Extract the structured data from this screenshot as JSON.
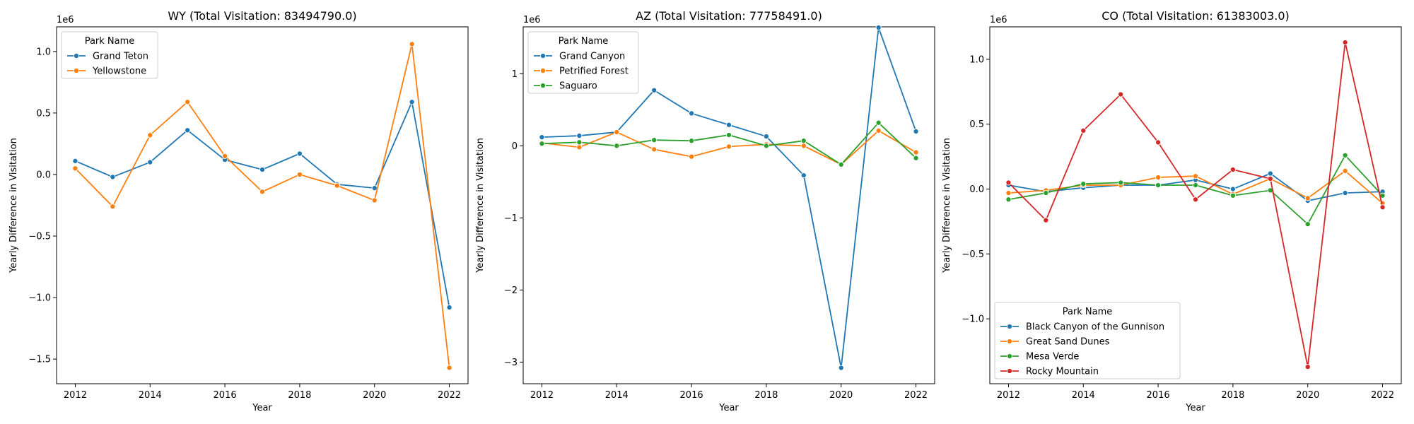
{
  "chart_data": [
    {
      "type": "line",
      "title": "WY (Total Visitation: 83494790.0)",
      "xlabel": "Year",
      "ylabel": "Yearly Difference in Visitation",
      "y_scale_label": "1e6",
      "xlim": [
        2011.5,
        2022.5
      ],
      "ylim": [
        -1.7,
        1.2
      ],
      "x_ticks": [
        2012,
        2014,
        2016,
        2018,
        2020,
        2022
      ],
      "y_ticks": [
        -1.5,
        -1.0,
        -0.5,
        0.0,
        0.5,
        1.0
      ],
      "y_tick_labels": [
        "−1.5",
        "−1.0",
        "−0.5",
        "0.0",
        "0.5",
        "1.0"
      ],
      "grid": false,
      "legend": {
        "title": "Park Name",
        "placement": "top-left"
      },
      "x": [
        2012,
        2013,
        2014,
        2015,
        2016,
        2017,
        2018,
        2019,
        2020,
        2021,
        2022
      ],
      "series": [
        {
          "name": "Grand Teton",
          "color": "#1f77b4",
          "values": [
            0.11,
            -0.02,
            0.1,
            0.36,
            0.12,
            0.04,
            0.17,
            -0.08,
            -0.11,
            0.59,
            -1.08
          ]
        },
        {
          "name": "Yellowstone",
          "color": "#ff7f0e",
          "values": [
            0.05,
            -0.26,
            0.32,
            0.59,
            0.15,
            -0.14,
            0.0,
            -0.09,
            -0.21,
            1.06,
            -1.57
          ]
        }
      ]
    },
    {
      "type": "line",
      "title": "AZ (Total Visitation: 77758491.0)",
      "xlabel": "Year",
      "ylabel": "Yearly Difference in Visitation",
      "y_scale_label": "1e6",
      "xlim": [
        2011.5,
        2022.5
      ],
      "ylim": [
        -3.3,
        1.65
      ],
      "x_ticks": [
        2012,
        2014,
        2016,
        2018,
        2020,
        2022
      ],
      "y_ticks": [
        -3,
        -2,
        -1,
        0,
        1
      ],
      "y_tick_labels": [
        "−3",
        "−2",
        "−1",
        "0",
        "1"
      ],
      "grid": false,
      "legend": {
        "title": "Park Name",
        "placement": "top-left"
      },
      "x": [
        2012,
        2013,
        2014,
        2015,
        2016,
        2017,
        2018,
        2019,
        2020,
        2021,
        2022
      ],
      "series": [
        {
          "name": "Grand Canyon",
          "color": "#1f77b4",
          "values": [
            0.12,
            0.14,
            0.19,
            0.77,
            0.45,
            0.29,
            0.13,
            -0.41,
            -3.08,
            1.64,
            0.2
          ]
        },
        {
          "name": "Petrified Forest",
          "color": "#ff7f0e",
          "values": [
            0.04,
            -0.02,
            0.19,
            -0.05,
            -0.15,
            -0.01,
            0.02,
            0.0,
            -0.26,
            0.21,
            -0.09
          ]
        },
        {
          "name": "Saguaro",
          "color": "#2ca02c",
          "values": [
            0.03,
            0.05,
            0.0,
            0.08,
            0.07,
            0.15,
            0.0,
            0.07,
            -0.26,
            0.32,
            -0.17
          ]
        }
      ]
    },
    {
      "type": "line",
      "title": "CO (Total Visitation: 61383003.0)",
      "xlabel": "Year",
      "ylabel": "Yearly Difference in Visitation",
      "y_scale_label": "1e6",
      "xlim": [
        2011.5,
        2022.5
      ],
      "ylim": [
        -1.5,
        1.25
      ],
      "x_ticks": [
        2012,
        2014,
        2016,
        2018,
        2020,
        2022
      ],
      "y_ticks": [
        -1.0,
        -0.5,
        0.0,
        0.5,
        1.0
      ],
      "y_tick_labels": [
        "−1.0",
        "−0.5",
        "0.0",
        "0.5",
        "1.0"
      ],
      "grid": false,
      "legend": {
        "title": "Park Name",
        "placement": "bottom-left"
      },
      "x": [
        2012,
        2013,
        2014,
        2015,
        2016,
        2017,
        2018,
        2019,
        2020,
        2021,
        2022
      ],
      "series": [
        {
          "name": "Black Canyon of the Gunnison",
          "color": "#1f77b4",
          "values": [
            0.03,
            -0.02,
            0.01,
            0.03,
            0.03,
            0.07,
            0.0,
            0.12,
            -0.09,
            -0.03,
            -0.02
          ]
        },
        {
          "name": "Great Sand Dunes",
          "color": "#ff7f0e",
          "values": [
            -0.03,
            -0.01,
            0.03,
            0.03,
            0.09,
            0.1,
            -0.04,
            0.08,
            -0.07,
            0.14,
            -0.11
          ]
        },
        {
          "name": "Mesa Verde",
          "color": "#2ca02c",
          "values": [
            -0.08,
            -0.03,
            0.04,
            0.05,
            0.03,
            0.03,
            -0.05,
            -0.01,
            -0.27,
            0.26,
            -0.05
          ]
        },
        {
          "name": "Rocky Mountain",
          "color": "#d62728",
          "values": [
            0.05,
            -0.24,
            0.45,
            0.73,
            0.36,
            -0.08,
            0.15,
            0.08,
            -1.37,
            1.13,
            -0.14
          ]
        }
      ]
    }
  ]
}
